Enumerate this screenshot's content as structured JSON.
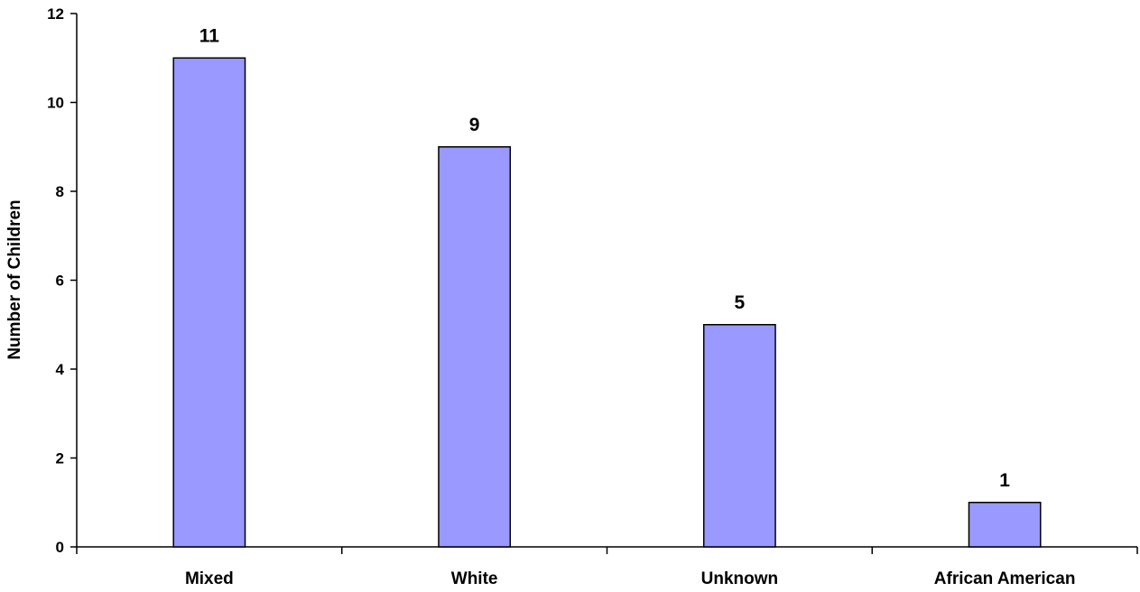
{
  "chart_data": {
    "type": "bar",
    "title": "",
    "xlabel": "",
    "ylabel": "Number of Children",
    "categories": [
      "Mixed",
      "White",
      "Unknown",
      "African American"
    ],
    "values": [
      11,
      9,
      5,
      1
    ],
    "data_labels": [
      "11",
      "9",
      "5",
      "1"
    ],
    "ylim": [
      0,
      12
    ],
    "yticks": [
      0,
      2,
      4,
      6,
      8,
      10,
      12
    ],
    "ytick_labels": [
      "0",
      "2",
      "4",
      "6",
      "8",
      "10",
      "12"
    ],
    "grid": false,
    "legend": "none",
    "bar_color": "#9999ff",
    "bar_border_color": "#000000"
  }
}
